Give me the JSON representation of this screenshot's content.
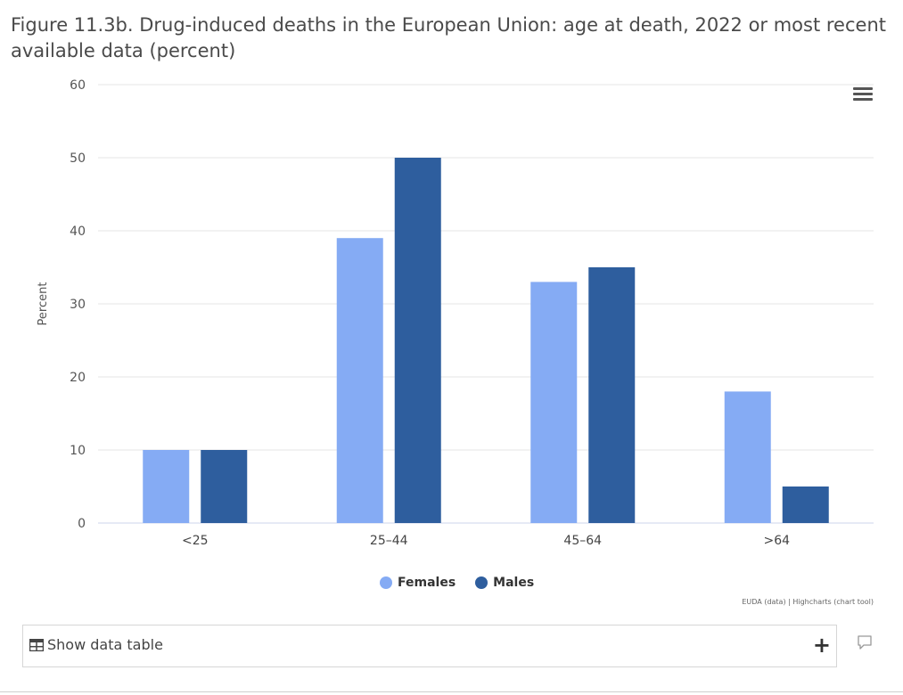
{
  "title": "Figure 11.3b. Drug-induced deaths in the European Union: age at death, 2022 or most recent available data (percent)",
  "chart_data": {
    "type": "bar",
    "categories": [
      "<25",
      "25–44",
      "45–64",
      ">64"
    ],
    "series": [
      {
        "name": "Females",
        "values": [
          10,
          39,
          33,
          18
        ],
        "color": "#85ABF4"
      },
      {
        "name": "Males",
        "values": [
          10,
          50,
          35,
          5
        ],
        "color": "#2E5E9E"
      }
    ],
    "ylabel": "Percent",
    "xlabel": "",
    "ylim": [
      0,
      60
    ],
    "yticks": [
      0,
      10,
      20,
      30,
      40,
      50,
      60
    ],
    "grid": true,
    "legend_position": "bottom-center"
  },
  "legend": {
    "females": "Females",
    "males": "Males"
  },
  "credits": "EUDA (data) | Highcharts (chart tool)",
  "data_table": {
    "label": "Show data table"
  },
  "colors": {
    "females": "#85ABF4",
    "males": "#2E5E9E",
    "grid": "#e6e6e6"
  }
}
